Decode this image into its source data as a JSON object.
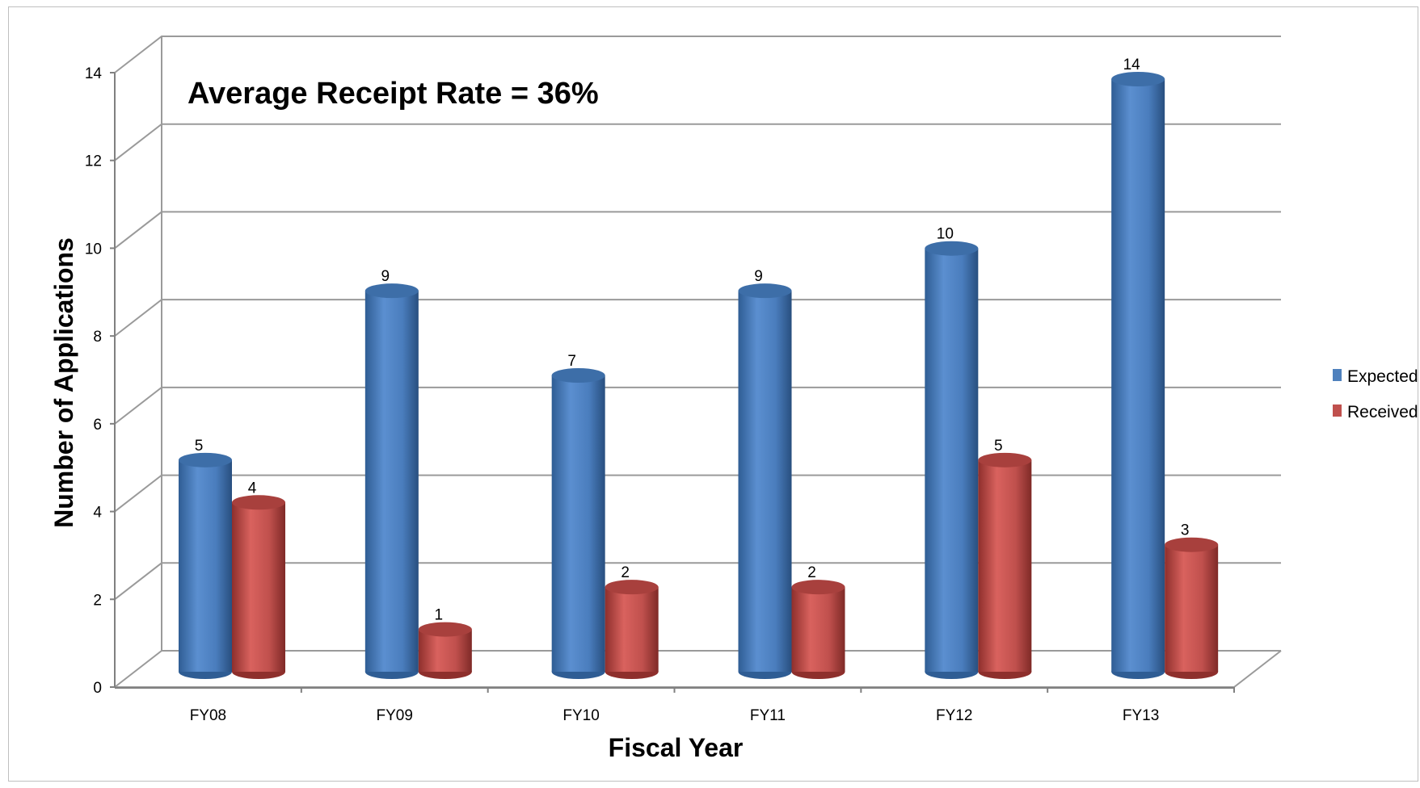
{
  "chart_data": {
    "type": "bar",
    "title": "",
    "annotation": "Average Receipt Rate = 36%",
    "xlabel": "Fiscal Year",
    "ylabel": "Number of Applications",
    "categories": [
      "FY08",
      "FY09",
      "FY10",
      "FY11",
      "FY12",
      "FY13"
    ],
    "series": [
      {
        "name": "Expected",
        "values": [
          5,
          9,
          7,
          9,
          10,
          14
        ],
        "color": "#4F81BD"
      },
      {
        "name": "Received",
        "values": [
          4,
          1,
          2,
          2,
          5,
          3
        ],
        "color": "#C0504D"
      }
    ],
    "ylim": [
      0,
      14
    ],
    "yticks": [
      0,
      2,
      4,
      6,
      8,
      10,
      12,
      14
    ],
    "grid": true,
    "legend_position": "right",
    "style": "3d-cylinder"
  }
}
